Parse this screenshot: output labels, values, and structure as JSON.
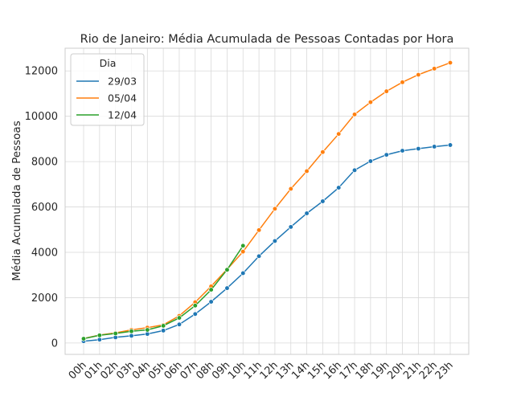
{
  "chart_data": {
    "type": "line",
    "title": "Rio de Janeiro: Média Acumulada de Pessoas Contadas por Hora",
    "xlabel": "",
    "ylabel": "Média Acumulada de Pessoas",
    "categories": [
      "00h",
      "01h",
      "02h",
      "03h",
      "04h",
      "05h",
      "06h",
      "07h",
      "08h",
      "09h",
      "10h",
      "11h",
      "12h",
      "13h",
      "14h",
      "15h",
      "16h",
      "17h",
      "18h",
      "19h",
      "20h",
      "21h",
      "22h",
      "23h"
    ],
    "yticks": [
      0,
      2000,
      4000,
      6000,
      8000,
      10000,
      12000
    ],
    "ylim": [
      -500,
      13000
    ],
    "grid": true,
    "markers": true,
    "legend": {
      "title": "Dia",
      "placement": "top-left"
    },
    "series": [
      {
        "name": "29/03",
        "color": "#1f77b4",
        "values": [
          80,
          150,
          250,
          320,
          400,
          550,
          820,
          1280,
          1820,
          2420,
          3080,
          3830,
          4500,
          5120,
          5720,
          6250,
          6850,
          7620,
          8020,
          8300,
          8480,
          8570,
          8660,
          8730
        ]
      },
      {
        "name": "05/04",
        "color": "#ff7f0e",
        "values": [
          200,
          350,
          450,
          580,
          680,
          800,
          1200,
          1800,
          2500,
          3250,
          4030,
          4980,
          5920,
          6800,
          7580,
          8420,
          9220,
          10080,
          10620,
          11100,
          11500,
          11830,
          12100,
          12360
        ]
      },
      {
        "name": "12/04",
        "color": "#2ca02c",
        "values": [
          190,
          340,
          420,
          520,
          580,
          760,
          1110,
          1650,
          2350,
          3230,
          4290,
          null,
          null,
          null,
          null,
          null,
          null,
          null,
          null,
          null,
          null,
          null,
          null,
          null
        ]
      }
    ]
  }
}
